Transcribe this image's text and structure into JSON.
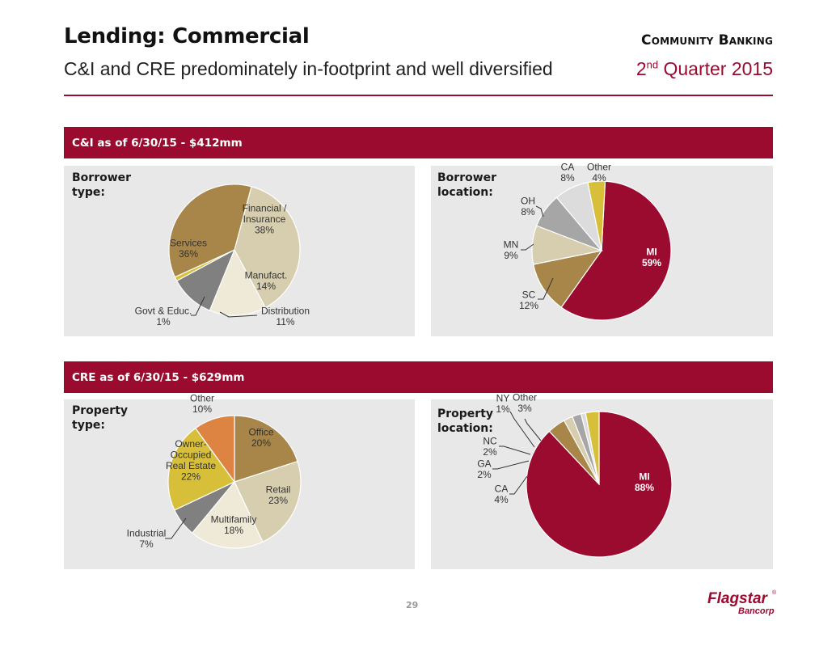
{
  "header": {
    "title": "Lending: Commercial",
    "subtitle": "C&I and CRE predominately in-footprint and well diversified",
    "segment": "Community Banking",
    "quarter_prefix": "2",
    "quarter_sup": "nd",
    "quarter_suffix": " Quarter 2015"
  },
  "sections": {
    "ci_title": "C&I as of 6/30/15 - $412mm",
    "cre_title": "CRE as of 6/30/15 - $629mm"
  },
  "panels": {
    "ci_type_label": "Borrower type:",
    "ci_location_label": "Borrower location:",
    "cre_type_label": "Property type:",
    "cre_location_label": "Property location:"
  },
  "footer": {
    "page_number": "29",
    "logo_name": "Flagstar",
    "logo_reg": "®",
    "logo_sub": "Bancorp"
  },
  "colors": {
    "brand": "#9b0a2f",
    "panel": "#e8e8e8"
  },
  "chart_data": [
    {
      "type": "pie",
      "title": "Borrower type",
      "slices": [
        {
          "label": "Financial / Insurance",
          "lines": [
            "Financial /",
            "Insurance"
          ],
          "value": 38,
          "text": "38%",
          "color": "#d6ceae"
        },
        {
          "label": "Manufact.",
          "lines": [
            "Manufact."
          ],
          "value": 14,
          "text": "14%",
          "color": "#efe9d8"
        },
        {
          "label": "Distribution",
          "lines": [
            "Distribution"
          ],
          "value": 11,
          "text": "11%",
          "color": "#808080"
        },
        {
          "label": "Govt & Educ.",
          "lines": [
            "Govt & Educ."
          ],
          "value": 1,
          "text": "1%",
          "color": "#d8bf3a"
        },
        {
          "label": "Services",
          "lines": [
            "Services"
          ],
          "value": 36,
          "text": "36%",
          "color": "#a8864a"
        }
      ]
    },
    {
      "type": "pie",
      "title": "Borrower location",
      "slices": [
        {
          "label": "MI",
          "lines": [
            "MI"
          ],
          "value": 59,
          "text": "59%",
          "color": "#9b0a2f"
        },
        {
          "label": "SC",
          "lines": [
            "SC"
          ],
          "value": 12,
          "text": "12%",
          "color": "#a8864a"
        },
        {
          "label": "MN",
          "lines": [
            "MN"
          ],
          "value": 9,
          "text": "9%",
          "color": "#d6ceae"
        },
        {
          "label": "OH",
          "lines": [
            "OH"
          ],
          "value": 8,
          "text": "8%",
          "color": "#a6a6a6"
        },
        {
          "label": "CA",
          "lines": [
            "CA"
          ],
          "value": 8,
          "text": "8%",
          "color": "#dcdcdc"
        },
        {
          "label": "Other",
          "lines": [
            "Other"
          ],
          "value": 4,
          "text": "4%",
          "color": "#d8bf3a"
        }
      ]
    },
    {
      "type": "pie",
      "title": "Property type",
      "slices": [
        {
          "label": "Office",
          "lines": [
            "Office"
          ],
          "value": 20,
          "text": "20%",
          "color": "#a8864a"
        },
        {
          "label": "Retail",
          "lines": [
            "Retail"
          ],
          "value": 23,
          "text": "23%",
          "color": "#d6ceae"
        },
        {
          "label": "Multifamily",
          "lines": [
            "Multifamily"
          ],
          "value": 18,
          "text": "18%",
          "color": "#efe9d8"
        },
        {
          "label": "Industrial",
          "lines": [
            "Industrial"
          ],
          "value": 7,
          "text": "7%",
          "color": "#808080"
        },
        {
          "label": "Owner-Occupied Real Estate",
          "lines": [
            "Owner-",
            "Occupied",
            "Real Estate"
          ],
          "value": 22,
          "text": "22%",
          "color": "#d8bf3a"
        },
        {
          "label": "Other",
          "lines": [
            "Other"
          ],
          "value": 10,
          "text": "10%",
          "color": "#dd8443"
        }
      ]
    },
    {
      "type": "pie",
      "title": "Property location",
      "slices": [
        {
          "label": "MI",
          "lines": [
            "MI"
          ],
          "value": 88,
          "text": "88%",
          "color": "#9b0a2f"
        },
        {
          "label": "CA",
          "lines": [
            "CA"
          ],
          "value": 4,
          "text": "4%",
          "color": "#a8864a"
        },
        {
          "label": "GA",
          "lines": [
            "GA"
          ],
          "value": 2,
          "text": "2%",
          "color": "#d6ceae"
        },
        {
          "label": "NC",
          "lines": [
            "NC"
          ],
          "value": 2,
          "text": "2%",
          "color": "#a6a6a6"
        },
        {
          "label": "NY",
          "lines": [
            "NY"
          ],
          "value": 1,
          "text": "1%",
          "color": "#dcdcdc"
        },
        {
          "label": "Other",
          "lines": [
            "Other"
          ],
          "value": 3,
          "text": "3%",
          "color": "#d8bf3a"
        }
      ]
    }
  ]
}
